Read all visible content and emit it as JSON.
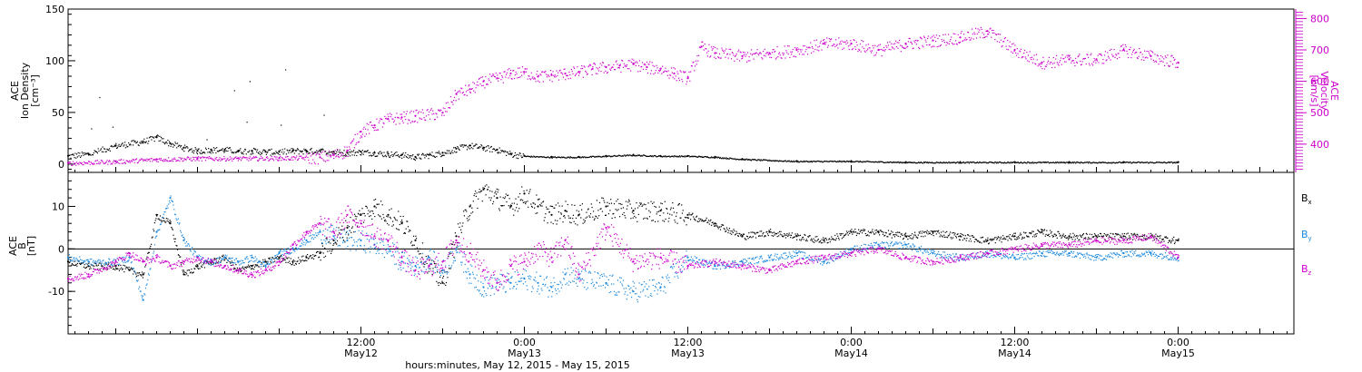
{
  "figure": {
    "x_axis_label": "hours:minutes, May 12, 2015 - May 15, 2015",
    "colors": {
      "black": "#000000",
      "magenta": "#cc00cc",
      "blue": "#1a88dd"
    }
  },
  "chart_data": [
    {
      "type": "scatter",
      "panel": "top",
      "ylabel": [
        "ACE",
        "Ion Density",
        "[cm⁻³]"
      ],
      "ylabel_right": [
        "ACE",
        "Velocity",
        "[km/s]"
      ],
      "ylim": [
        -8,
        150
      ],
      "ylim_right": [
        310,
        830
      ],
      "yticks": [
        "0",
        "50",
        "100",
        "150"
      ],
      "yticks_right": [
        "400",
        "500",
        "600",
        "700",
        "800"
      ],
      "xlim_hours": [
        -9.5,
        80.5
      ],
      "x_ticks": [
        {
          "time": "12:00",
          "date": "May12"
        },
        {
          "time": "0:00",
          "date": "May13"
        },
        {
          "time": "12:00",
          "date": "May13"
        },
        {
          "time": "0:00",
          "date": "May14"
        },
        {
          "time": "12:00",
          "date": "May14"
        },
        {
          "time": "0:00",
          "date": "May15"
        }
      ],
      "series": [
        {
          "axis": "left",
          "color": "#000000",
          "x": [
            -9.5,
            -8,
            -6,
            -4,
            -3,
            -2,
            -1,
            0,
            1,
            2,
            3,
            4,
            5,
            6,
            7,
            8,
            9,
            10,
            11,
            12,
            13,
            14,
            15,
            16,
            17,
            18,
            19,
            20,
            21,
            22,
            23,
            24,
            26,
            28,
            30,
            32,
            34,
            36,
            38,
            40,
            44,
            48,
            52,
            56,
            60,
            64,
            68,
            72
          ],
          "y": [
            8,
            10,
            18,
            22,
            26,
            20,
            16,
            13,
            14,
            14,
            13,
            13,
            12,
            12,
            13,
            13,
            13,
            12,
            11,
            12,
            11,
            10,
            9,
            7,
            9,
            11,
            15,
            18,
            16,
            14,
            10,
            8,
            7,
            7,
            8,
            9,
            8,
            8,
            7,
            5,
            3,
            3,
            2,
            2,
            2,
            2,
            2,
            2
          ]
        },
        {
          "axis": "right",
          "color": "#cc00cc",
          "x": [
            -9.5,
            -6,
            -3,
            0,
            3,
            6,
            9,
            10,
            11,
            12,
            13,
            14,
            15,
            16,
            18,
            19,
            20,
            21,
            22,
            23,
            24,
            25,
            26,
            27,
            28,
            29,
            30,
            31,
            32,
            33,
            34,
            35,
            36,
            37,
            38,
            40,
            42,
            44,
            46,
            48,
            50,
            52,
            54,
            56,
            58,
            60,
            62,
            64,
            66,
            68,
            70,
            72
          ],
          "y": [
            340,
            345,
            352,
            355,
            355,
            356,
            358,
            365,
            380,
            440,
            460,
            480,
            485,
            490,
            500,
            560,
            575,
            600,
            610,
            625,
            630,
            615,
            620,
            625,
            630,
            640,
            645,
            650,
            655,
            645,
            640,
            625,
            610,
            710,
            690,
            680,
            690,
            700,
            720,
            720,
            700,
            720,
            730,
            740,
            760,
            700,
            660,
            670,
            670,
            700,
            680,
            660
          ]
        }
      ]
    },
    {
      "type": "scatter",
      "panel": "bottom",
      "ylabel": [
        "ACE",
        "B",
        "[nT]"
      ],
      "ylim": [
        -20,
        18
      ],
      "yticks": [
        "-10",
        "0",
        "10"
      ],
      "xlim_hours": [
        -9.5,
        80.5
      ],
      "series": [
        {
          "name": "Bx",
          "color": "#000000",
          "x": [
            -9.5,
            -8,
            -6,
            -5,
            -4,
            -3,
            -2,
            -1,
            0,
            1,
            2,
            3,
            4,
            5,
            6,
            7,
            8,
            9,
            10,
            11,
            12,
            13,
            14,
            15,
            16,
            17,
            18,
            19,
            20,
            21,
            22,
            23,
            24,
            25,
            26,
            27,
            28,
            30,
            32,
            34,
            36,
            38,
            40,
            42,
            44,
            46,
            48,
            50,
            52,
            54,
            56,
            58,
            60,
            62,
            64,
            66,
            68,
            70,
            72
          ],
          "y": [
            -3,
            -4,
            -4,
            -5,
            -6,
            8,
            6,
            -6,
            -4,
            -3,
            -2,
            -5,
            -4,
            -3,
            -2,
            -3,
            -2,
            -1,
            2,
            5,
            8,
            10,
            8,
            6,
            2,
            -4,
            -8,
            3,
            10,
            14,
            12,
            10,
            13,
            10,
            8,
            9,
            8,
            10,
            9,
            9,
            8,
            6,
            3,
            4,
            3,
            2,
            4,
            4,
            3,
            4,
            3,
            2,
            3,
            4,
            3,
            3,
            3,
            3,
            2
          ]
        },
        {
          "name": "By",
          "color": "#1a88dd",
          "x": [
            -9.5,
            -8,
            -6,
            -5,
            -4,
            -3,
            -2,
            -1,
            0,
            1,
            2,
            3,
            4,
            5,
            6,
            7,
            8,
            9,
            10,
            11,
            12,
            13,
            14,
            15,
            16,
            17,
            18,
            19,
            20,
            21,
            22,
            23,
            24,
            25,
            26,
            27,
            28,
            30,
            32,
            34,
            36,
            38,
            40,
            42,
            44,
            46,
            48,
            50,
            52,
            54,
            56,
            58,
            60,
            62,
            64,
            66,
            68,
            70,
            72
          ],
          "y": [
            -2,
            -3,
            -3,
            -2,
            -12,
            4,
            12,
            2,
            -2,
            -3,
            -2,
            -3,
            -2,
            -4,
            -1,
            0,
            2,
            4,
            3,
            2,
            2,
            1,
            0,
            -3,
            -4,
            -2,
            -5,
            0,
            -6,
            -9,
            -8,
            -8,
            -7,
            -8,
            -9,
            -6,
            -7,
            -8,
            -10,
            -9,
            -2,
            -4,
            -3,
            -2,
            -1,
            -3,
            0,
            1,
            1,
            -1,
            -2,
            -1,
            -2,
            -1,
            -1,
            -2,
            -1,
            -1,
            -2
          ]
        },
        {
          "name": "Bz",
          "color": "#cc00cc",
          "x": [
            -9.5,
            -8,
            -6,
            -5,
            -4,
            -3,
            -2,
            -1,
            0,
            1,
            2,
            3,
            4,
            5,
            6,
            7,
            8,
            9,
            10,
            11,
            12,
            13,
            14,
            15,
            16,
            17,
            18,
            19,
            20,
            21,
            22,
            23,
            24,
            25,
            26,
            27,
            28,
            30,
            32,
            34,
            36,
            38,
            40,
            42,
            44,
            46,
            48,
            50,
            52,
            54,
            56,
            58,
            60,
            62,
            64,
            66,
            68,
            70,
            72
          ],
          "y": [
            -7,
            -6,
            -3,
            -1,
            -3,
            -2,
            -4,
            -3,
            -2,
            -3,
            -4,
            -5,
            -6,
            -5,
            -3,
            1,
            4,
            6,
            4,
            8,
            6,
            3,
            2,
            -2,
            -5,
            -4,
            -3,
            2,
            -1,
            -5,
            -8,
            -4,
            -3,
            0,
            -2,
            2,
            -6,
            5,
            -3,
            -2,
            -4,
            -3,
            -4,
            -5,
            -3,
            -2,
            -1,
            0,
            -2,
            -3,
            -2,
            -1,
            0,
            1,
            1,
            2,
            2,
            3,
            -2
          ]
        }
      ],
      "legend": [
        {
          "label": "B",
          "sub": "x",
          "color": "#000000"
        },
        {
          "label": "B",
          "sub": "y",
          "color": "#1a88dd"
        },
        {
          "label": "B",
          "sub": "z",
          "color": "#cc00cc"
        }
      ]
    }
  ]
}
